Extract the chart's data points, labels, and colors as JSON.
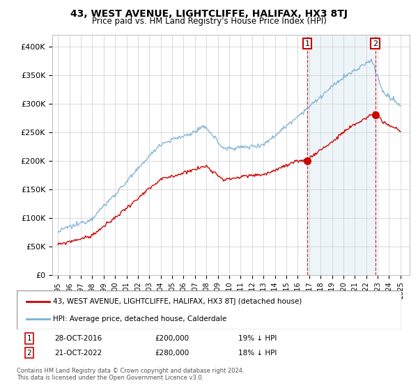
{
  "title": "43, WEST AVENUE, LIGHTCLIFFE, HALIFAX, HX3 8TJ",
  "subtitle": "Price paid vs. HM Land Registry's House Price Index (HPI)",
  "ylabel_ticks": [
    "£0",
    "£50K",
    "£100K",
    "£150K",
    "£200K",
    "£250K",
    "£300K",
    "£350K",
    "£400K"
  ],
  "ytick_values": [
    0,
    50000,
    100000,
    150000,
    200000,
    250000,
    300000,
    350000,
    400000
  ],
  "ylim": [
    0,
    420000
  ],
  "sale1_date": "28-OCT-2016",
  "sale1_price": 200000,
  "sale1_hpi_pct": "19% ↓ HPI",
  "sale2_date": "21-OCT-2022",
  "sale2_price": 280000,
  "sale2_hpi_pct": "18% ↓ HPI",
  "legend_line1": "43, WEST AVENUE, LIGHTCLIFFE, HALIFAX, HX3 8TJ (detached house)",
  "legend_line2": "HPI: Average price, detached house, Calderdale",
  "footnote": "Contains HM Land Registry data © Crown copyright and database right 2024.\nThis data is licensed under the Open Government Licence v3.0.",
  "house_color": "#cc0000",
  "hpi_color": "#7bafd4",
  "fill_color": "#ddeeff",
  "marker1_x": 2016.83,
  "marker2_x": 2022.8,
  "background_color": "#ffffff",
  "grid_color": "#cccccc",
  "title_fontsize": 10,
  "subtitle_fontsize": 8.5
}
